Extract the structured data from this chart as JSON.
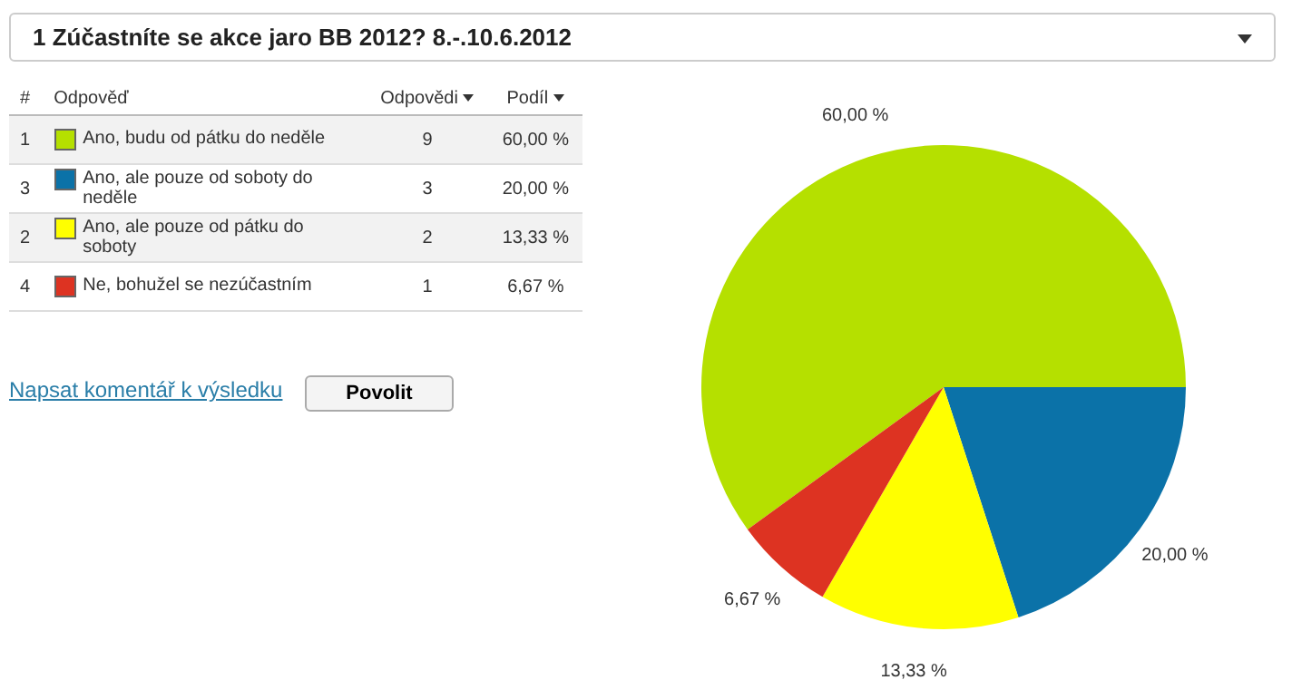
{
  "chart_data": {
    "type": "pie",
    "title": "1 Zúčastníte se akce jaro BB 2012? 8.-.10.6.2012",
    "categories": [
      "Ano, budu od pátku do neděle",
      "Ano, ale pouze od soboty do neděle",
      "Ano, ale pouze od pátku do soboty",
      "Ne, bohužel se nezúčastním"
    ],
    "values": [
      60,
      20,
      13.33,
      6.67
    ],
    "value_labels": [
      "60,00 %",
      "20,00 %",
      "13,33 %",
      "6,67 %"
    ],
    "colors": [
      "#b5e000",
      "#0b72a8",
      "#ffff00",
      "#dd3322"
    ],
    "legend": "left",
    "annotations": [
      "#",
      "Odpověď",
      "Odpovědi",
      "Podíl",
      "1",
      "3",
      "2",
      "4",
      "Napsat komentář k výsledku",
      "Povolit",
      "9",
      "3",
      "2",
      "1"
    ]
  }
}
